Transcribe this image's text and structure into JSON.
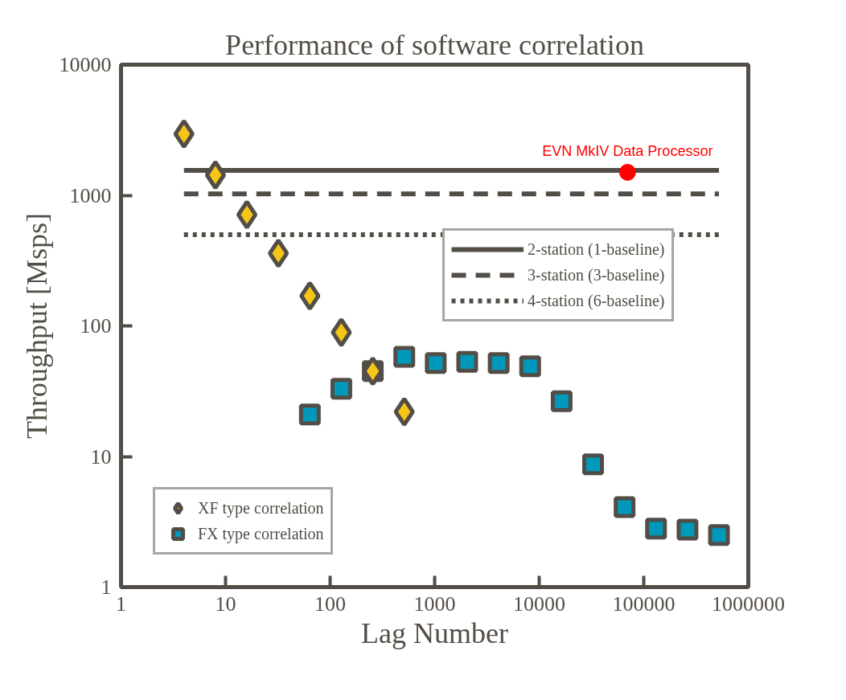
{
  "chart_data": {
    "type": "scatter",
    "title": "Performance of software correlation",
    "xlabel": "Lag Number",
    "ylabel": "Throughput [Msps]",
    "log": "xy",
    "grid": false,
    "legend": "right",
    "xlim": [
      1,
      1000000
    ],
    "ylim": [
      1,
      10000
    ],
    "xticks": [
      1,
      10,
      100,
      1000,
      10000,
      100000,
      1000000
    ],
    "yticks": [
      1,
      10,
      100,
      1000,
      10000
    ],
    "series": [
      {
        "name": "2-station (1-baseline)",
        "type": "line",
        "line_style": "solid",
        "color": "#524d46",
        "x": [
          4,
          524288
        ],
        "values": [
          1550,
          1550
        ]
      },
      {
        "name": "3-station (3-baseline)",
        "type": "line",
        "line_style": "dashed",
        "color": "#524d46",
        "x": [
          4,
          524288
        ],
        "values": [
          1024,
          1024
        ]
      },
      {
        "name": "4-station (6-baseline)",
        "type": "line",
        "line_style": "dotted",
        "color": "#524d46",
        "x": [
          4,
          524288
        ],
        "values": [
          500,
          500
        ]
      },
      {
        "name": "XF type correlation",
        "marker": "diamond",
        "color": "#f5c518",
        "x": [
          4,
          8,
          16,
          32,
          64,
          128,
          256,
          512
        ],
        "values": [
          2950,
          1430,
          710,
          360,
          170,
          89,
          45,
          22
        ]
      },
      {
        "name": "FX type correlation",
        "marker": "square",
        "color": "#0099bb",
        "x": [
          64,
          128,
          256,
          512,
          1024,
          2048,
          4096,
          8192,
          16384,
          32768,
          65536,
          131072,
          262144,
          524288
        ],
        "values": [
          21,
          33,
          45,
          58,
          52,
          53,
          52,
          49,
          26.5,
          8.7,
          4.1,
          2.8,
          2.75,
          2.5
        ]
      },
      {
        "marker": "circle",
        "color": "#ff0000",
        "x": [
          70000
        ],
        "values": [
          1500
        ]
      }
    ],
    "annotations": [
      {
        "text": "EVN MkIV Data Processor",
        "x": 70000,
        "y": 1500
      }
    ]
  }
}
